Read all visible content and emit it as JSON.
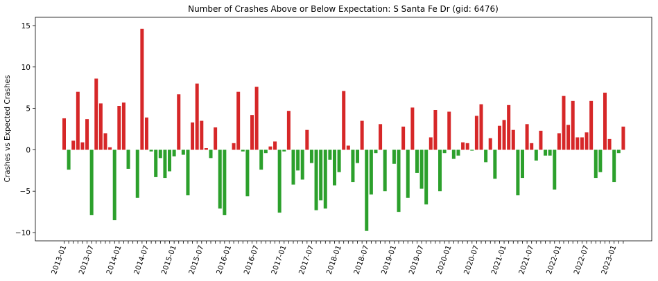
{
  "chart_data": {
    "type": "bar",
    "title": "Number of Crashes Above or Below Expectation: S Santa Fe Dr (gid: 6476)",
    "xlabel": "",
    "ylabel": "Crashes vs Expected Crashes",
    "ylim": [
      -11,
      16
    ],
    "yticks": [
      -10,
      -5,
      0,
      5,
      10,
      15
    ],
    "grid": false,
    "colors": {
      "positive": "#d62728",
      "negative": "#2ca02c"
    },
    "x_tick_labels": [
      "2013-01",
      "2013-07",
      "2014-01",
      "2014-07",
      "2015-01",
      "2015-07",
      "2016-01",
      "2016-07",
      "2017-01",
      "2017-07",
      "2018-01",
      "2018-07",
      "2019-01",
      "2019-07",
      "2020-01",
      "2020-07",
      "2021-01",
      "2021-07",
      "2022-01",
      "2022-07",
      "2023-01"
    ],
    "start_month": "2013-01",
    "values": [
      3.8,
      -2.4,
      1.1,
      7.0,
      0.9,
      3.7,
      -7.9,
      8.6,
      5.6,
      2.0,
      0.3,
      -8.5,
      5.3,
      5.7,
      -2.3,
      0.0,
      -5.8,
      14.6,
      3.9,
      -0.2,
      -3.3,
      -1.0,
      -3.4,
      -2.6,
      -0.8,
      6.7,
      -0.6,
      -5.5,
      3.3,
      8.0,
      3.5,
      0.2,
      -1.0,
      2.7,
      -7.1,
      -7.9,
      0.0,
      0.8,
      7.0,
      -0.2,
      -5.6,
      4.2,
      7.6,
      -2.4,
      -0.4,
      0.4,
      1.0,
      -7.6,
      -0.2,
      4.7,
      -4.2,
      -2.5,
      -3.6,
      2.4,
      -1.6,
      -7.3,
      -6.1,
      -7.1,
      -1.2,
      -4.3,
      -2.7,
      7.1,
      0.5,
      -3.9,
      -1.6,
      3.5,
      -9.8,
      -5.4,
      -0.4,
      3.1,
      -5.0,
      0.0,
      -1.7,
      -7.5,
      2.8,
      -5.8,
      5.1,
      -2.8,
      -4.7,
      -6.6,
      1.5,
      4.8,
      -5.0,
      -0.4,
      4.6,
      -1.1,
      -0.7,
      0.9,
      0.8,
      -0.1,
      4.1,
      5.5,
      -1.5,
      1.4,
      -3.5,
      2.9,
      3.6,
      5.4,
      2.4,
      -5.5,
      -3.4,
      3.1,
      0.8,
      -1.3,
      2.3,
      -0.7,
      -0.7,
      -4.8,
      2.0,
      6.5,
      3.0,
      5.9,
      1.5,
      1.5,
      2.1,
      5.9,
      -3.4,
      -2.7,
      6.9,
      1.3,
      -3.9,
      -0.4,
      2.8
    ]
  }
}
